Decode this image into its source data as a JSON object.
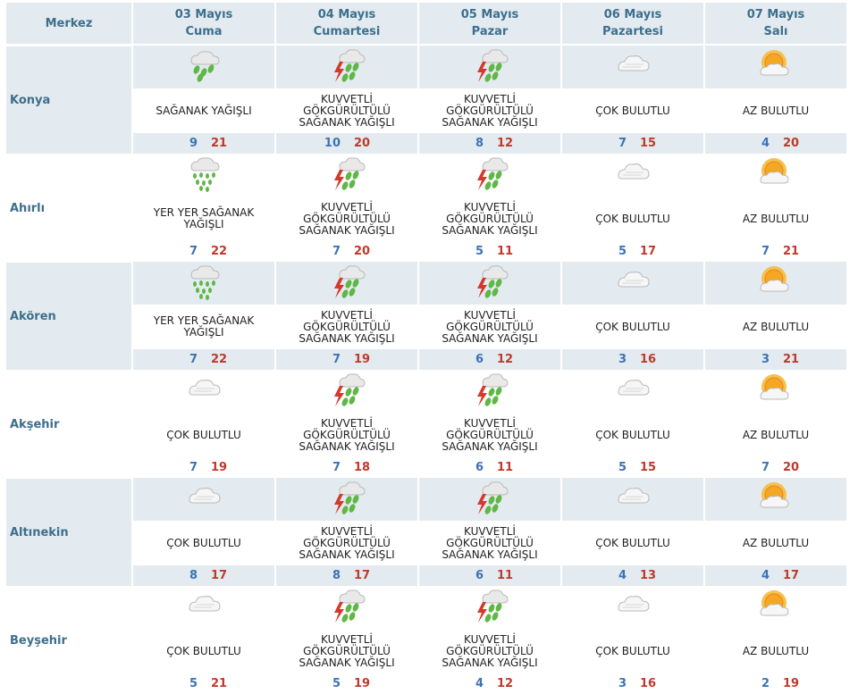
{
  "header": {
    "merkez": "Merkez",
    "days": [
      {
        "date": "03 Mayıs",
        "day": "Cuma"
      },
      {
        "date": "04 Mayıs",
        "day": "Cumartesi"
      },
      {
        "date": "05 Mayıs",
        "day": "Pazar"
      },
      {
        "date": "06 Mayıs",
        "day": "Pazartesi"
      },
      {
        "date": "07 Mayıs",
        "day": "Salı"
      }
    ]
  },
  "rows": [
    {
      "city": "Konya",
      "cells": [
        {
          "icon": "showers-icon",
          "desc": "SAĞANAK YAĞIŞLI",
          "min": "9",
          "max": "21"
        },
        {
          "icon": "thunderstorm-icon",
          "desc": "KUVVETLİ GÖKGÜRÜLTÜLÜ SAĞANAK YAĞIŞLI",
          "min": "10",
          "max": "20"
        },
        {
          "icon": "thunderstorm-icon",
          "desc": "KUVVETLİ GÖKGÜRÜLTÜLÜ SAĞANAK YAĞIŞLI",
          "min": "8",
          "max": "12"
        },
        {
          "icon": "cloudy-icon",
          "desc": "ÇOK BULUTLU",
          "min": "7",
          "max": "15"
        },
        {
          "icon": "partly-sunny-icon",
          "desc": "AZ BULUTLU",
          "min": "4",
          "max": "20"
        }
      ]
    },
    {
      "city": "Ahırlı",
      "cells": [
        {
          "icon": "scattered-showers-icon",
          "desc": "YER YER SAĞANAK YAĞIŞLI",
          "min": "7",
          "max": "22"
        },
        {
          "icon": "thunderstorm-icon",
          "desc": "KUVVETLİ GÖKGÜRÜLTÜLÜ SAĞANAK YAĞIŞLI",
          "min": "7",
          "max": "20"
        },
        {
          "icon": "thunderstorm-icon",
          "desc": "KUVVETLİ GÖKGÜRÜLTÜLÜ SAĞANAK YAĞIŞLI",
          "min": "5",
          "max": "11"
        },
        {
          "icon": "cloudy-icon",
          "desc": "ÇOK BULUTLU",
          "min": "5",
          "max": "17"
        },
        {
          "icon": "partly-sunny-icon",
          "desc": "AZ BULUTLU",
          "min": "7",
          "max": "21"
        }
      ]
    },
    {
      "city": "Akören",
      "cells": [
        {
          "icon": "scattered-showers-icon",
          "desc": "YER YER SAĞANAK YAĞIŞLI",
          "min": "7",
          "max": "22"
        },
        {
          "icon": "thunderstorm-icon",
          "desc": "KUVVETLİ GÖKGÜRÜLTÜLÜ SAĞANAK YAĞIŞLI",
          "min": "7",
          "max": "19"
        },
        {
          "icon": "thunderstorm-icon",
          "desc": "KUVVETLİ GÖKGÜRÜLTÜLÜ SAĞANAK YAĞIŞLI",
          "min": "6",
          "max": "12"
        },
        {
          "icon": "cloudy-icon",
          "desc": "ÇOK BULUTLU",
          "min": "3",
          "max": "16"
        },
        {
          "icon": "partly-sunny-icon",
          "desc": "AZ BULUTLU",
          "min": "3",
          "max": "21"
        }
      ]
    },
    {
      "city": "Akşehir",
      "cells": [
        {
          "icon": "cloudy-icon",
          "desc": "ÇOK BULUTLU",
          "min": "7",
          "max": "19"
        },
        {
          "icon": "thunderstorm-icon",
          "desc": "KUVVETLİ GÖKGÜRÜLTÜLÜ SAĞANAK YAĞIŞLI",
          "min": "7",
          "max": "18"
        },
        {
          "icon": "thunderstorm-icon",
          "desc": "KUVVETLİ GÖKGÜRÜLTÜLÜ SAĞANAK YAĞIŞLI",
          "min": "6",
          "max": "11"
        },
        {
          "icon": "cloudy-icon",
          "desc": "ÇOK BULUTLU",
          "min": "5",
          "max": "15"
        },
        {
          "icon": "partly-sunny-icon",
          "desc": "AZ BULUTLU",
          "min": "7",
          "max": "20"
        }
      ]
    },
    {
      "city": "Altınekin",
      "cells": [
        {
          "icon": "cloudy-icon",
          "desc": "ÇOK BULUTLU",
          "min": "8",
          "max": "17"
        },
        {
          "icon": "thunderstorm-icon",
          "desc": "KUVVETLİ GÖKGÜRÜLTÜLÜ SAĞANAK YAĞIŞLI",
          "min": "8",
          "max": "17"
        },
        {
          "icon": "thunderstorm-icon",
          "desc": "KUVVETLİ GÖKGÜRÜLTÜLÜ SAĞANAK YAĞIŞLI",
          "min": "6",
          "max": "11"
        },
        {
          "icon": "cloudy-icon",
          "desc": "ÇOK BULUTLU",
          "min": "4",
          "max": "13"
        },
        {
          "icon": "partly-sunny-icon",
          "desc": "AZ BULUTLU",
          "min": "4",
          "max": "17"
        }
      ]
    },
    {
      "city": "Beyşehir",
      "cells": [
        {
          "icon": "cloudy-icon",
          "desc": "ÇOK BULUTLU",
          "min": "5",
          "max": "21"
        },
        {
          "icon": "thunderstorm-icon",
          "desc": "KUVVETLİ GÖKGÜRÜLTÜLÜ SAĞANAK YAĞIŞLI",
          "min": "5",
          "max": "19"
        },
        {
          "icon": "thunderstorm-icon",
          "desc": "KUVVETLİ GÖKGÜRÜLTÜLÜ SAĞANAK YAĞIŞLI",
          "min": "4",
          "max": "12"
        },
        {
          "icon": "cloudy-icon",
          "desc": "ÇOK BULUTLU",
          "min": "3",
          "max": "16"
        },
        {
          "icon": "partly-sunny-icon",
          "desc": "AZ BULUTLU",
          "min": "2",
          "max": "19"
        }
      ]
    }
  ],
  "colors": {
    "header_bg": "#e3ebf0",
    "header_text": "#3d6e8c",
    "min_temp": "#3c73b5",
    "max_temp": "#c0392b"
  }
}
